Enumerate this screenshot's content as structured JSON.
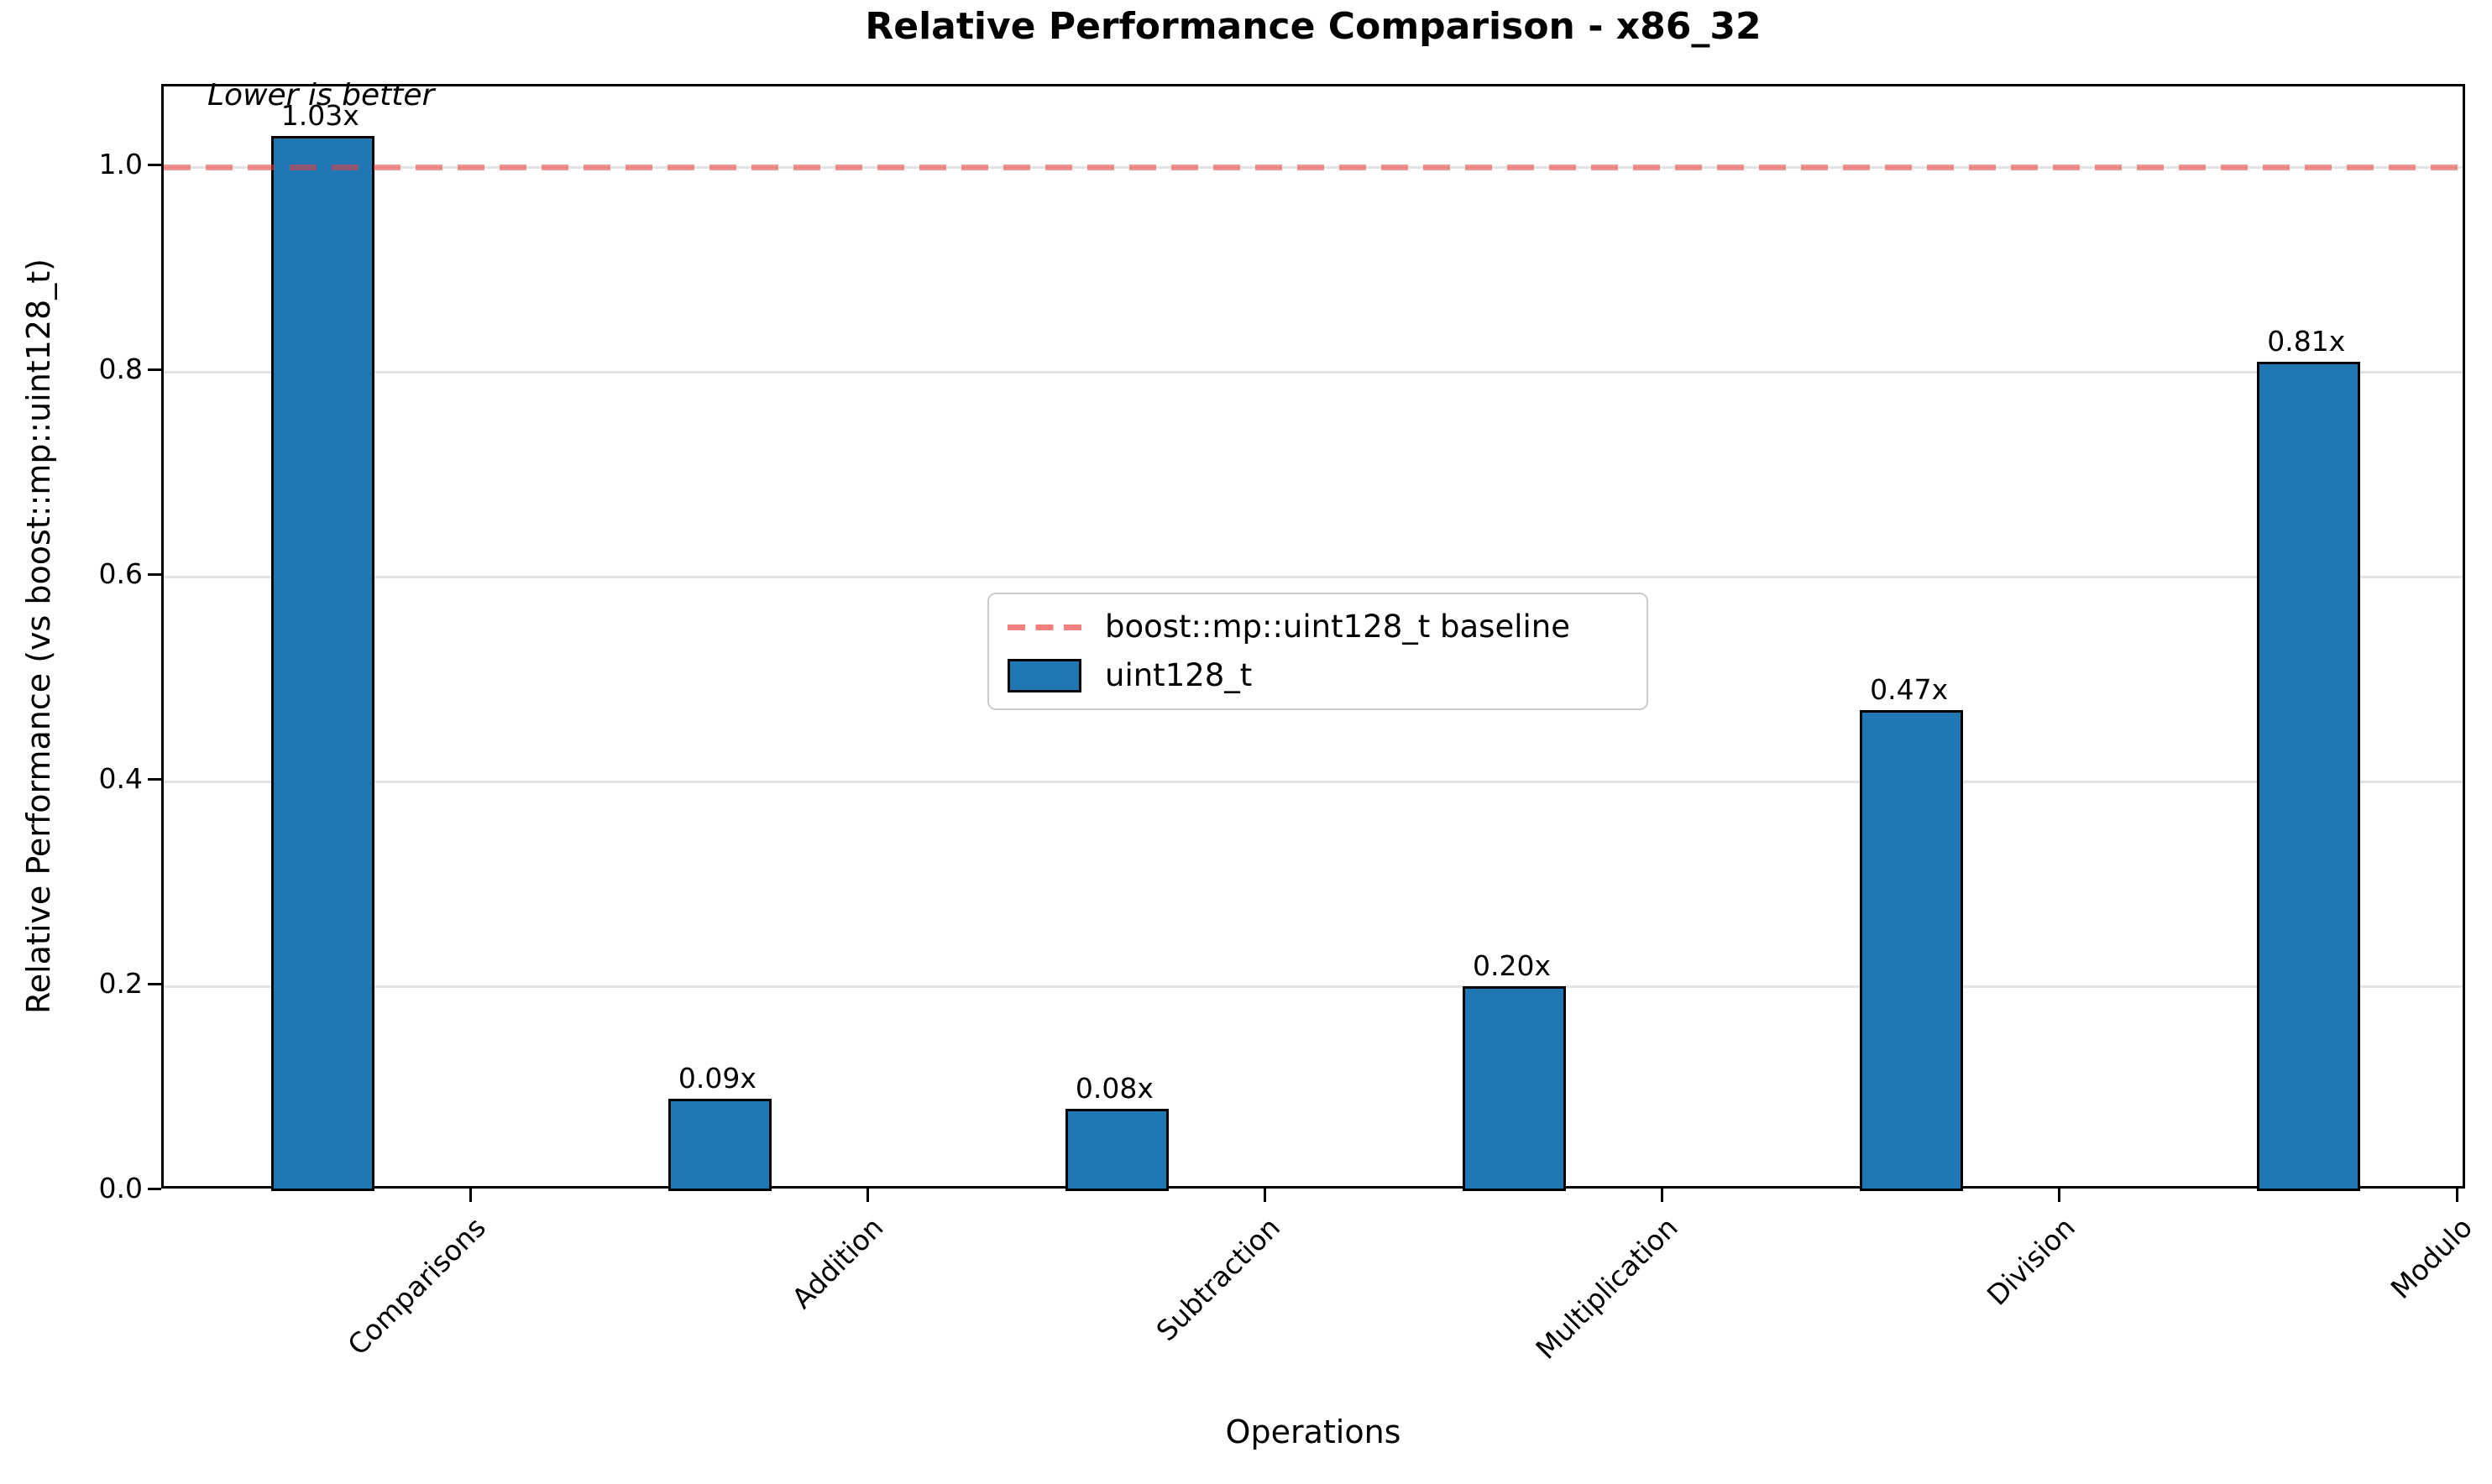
{
  "chart_data": {
    "type": "bar",
    "title": "Relative Performance Comparison - x86_32",
    "xlabel": "Operations",
    "ylabel": "Relative Performance (vs boost::mp::uint128_t)",
    "annotation": "Lower is better",
    "categories": [
      "Comparisons",
      "Addition",
      "Subtraction",
      "Multiplication",
      "Division",
      "Modulo"
    ],
    "series": [
      {
        "name": "uint128_t",
        "values": [
          1.03,
          0.09,
          0.08,
          0.2,
          0.47,
          0.81
        ],
        "color": "#1f77b4",
        "edge_color": "#000000"
      }
    ],
    "bar_value_labels": [
      "1.03x",
      "0.09x",
      "0.08x",
      "0.20x",
      "0.47x",
      "0.81x"
    ],
    "baseline": {
      "y": 1.0,
      "label": "boost::mp::uint128_t baseline",
      "color": "#eb3c3a",
      "linestyle": "dashed"
    },
    "ylim": [
      0,
      1.08
    ],
    "yticks": [
      "0.0",
      "0.2",
      "0.4",
      "0.6",
      "0.8",
      "1.0"
    ],
    "grid": "horizontal",
    "legend": {
      "position": "center",
      "entries": [
        "boost::mp::uint128_t baseline",
        "uint128_t"
      ]
    }
  }
}
